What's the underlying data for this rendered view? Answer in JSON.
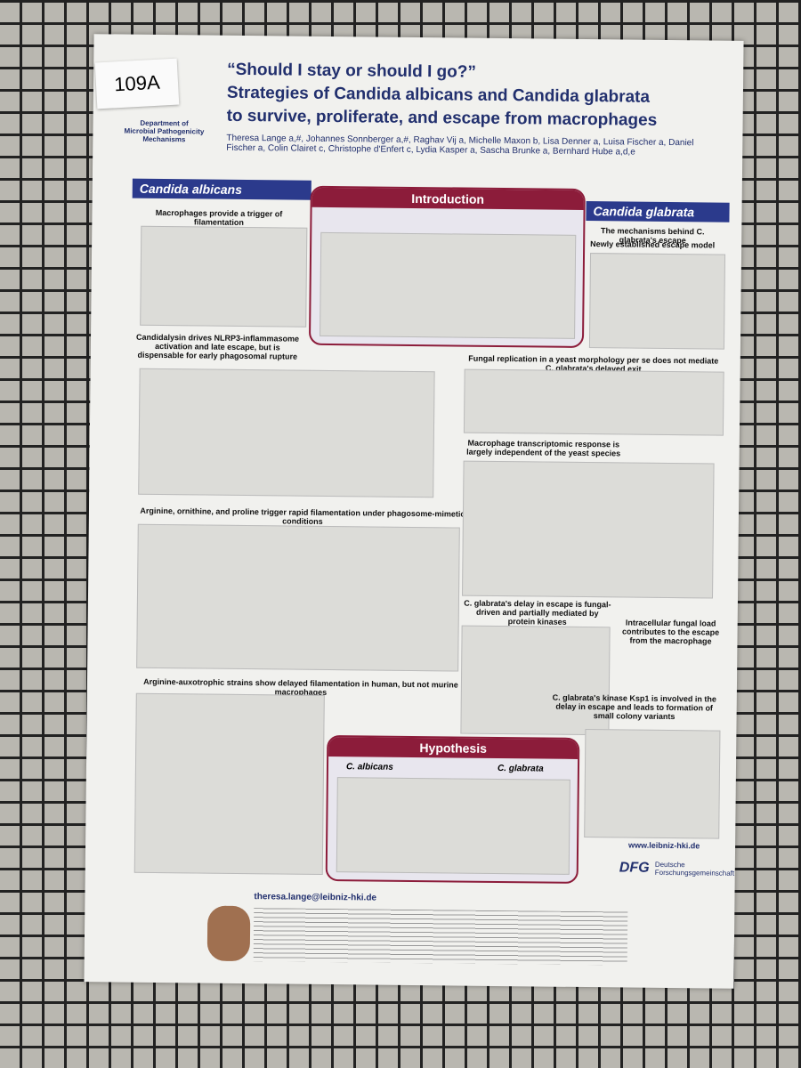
{
  "tag": "109A",
  "department": "Department of Microbial Pathogenicity Mechanisms",
  "title": {
    "line1": "“Should I stay or should I go?”",
    "line2": "Strategies of Candida albicans and Candida glabrata",
    "line3": "to survive, proliferate, and escape from macrophages"
  },
  "authors": "Theresa Lange a,#, Johannes Sonnberger a,#, Raghav Vij a, Michelle Maxon b, Lisa Denner a, Luisa Fischer a, Daniel Fischer a, Colin Clairet c, Christophe d'Enfert c, Lydia Kasper a, Sascha Brunke a, Bernhard Hube a,d,e",
  "left": {
    "header": "Candida albicans",
    "subheads": [
      "Macrophages provide a trigger of filamentation",
      "Candidalysin drives NLRP3-inflammasome activation and late escape, but is dispensable for early phagosomal rupture",
      "Arginine, ornithine, and proline trigger rapid filamentation under phagosome-mimetic conditions",
      "Arginine-auxotrophic strains show delayed filamentation in human, but not murine macrophages"
    ]
  },
  "intro": {
    "header": "Introduction"
  },
  "right": {
    "header": "Candida glabrata",
    "subheads": [
      "The mechanisms behind C. glabrata's escape",
      "Newly established escape model",
      "Fungal replication in a yeast morphology per se does not mediate C. glabrata's delayed exit",
      "Macrophage transcriptomic response is largely independent of the yeast species",
      "C. glabrata's delay in escape is fungal-driven and partially mediated by protein kinases",
      "Intracellular fungal load contributes to the escape from the macrophage",
      "C. glabrata's kinase Ksp1 is involved in the delay in escape and leads to formation of small colony variants"
    ]
  },
  "hypothesis": {
    "header": "Hypothesis",
    "left": "C. albicans",
    "right": "C. glabrata"
  },
  "website": "www.leibniz-hki.de",
  "funder": {
    "short": "DFG",
    "name": "Deutsche Forschungsgemeinschaft"
  },
  "email": "theresa.lange@leibniz-hki.de"
}
